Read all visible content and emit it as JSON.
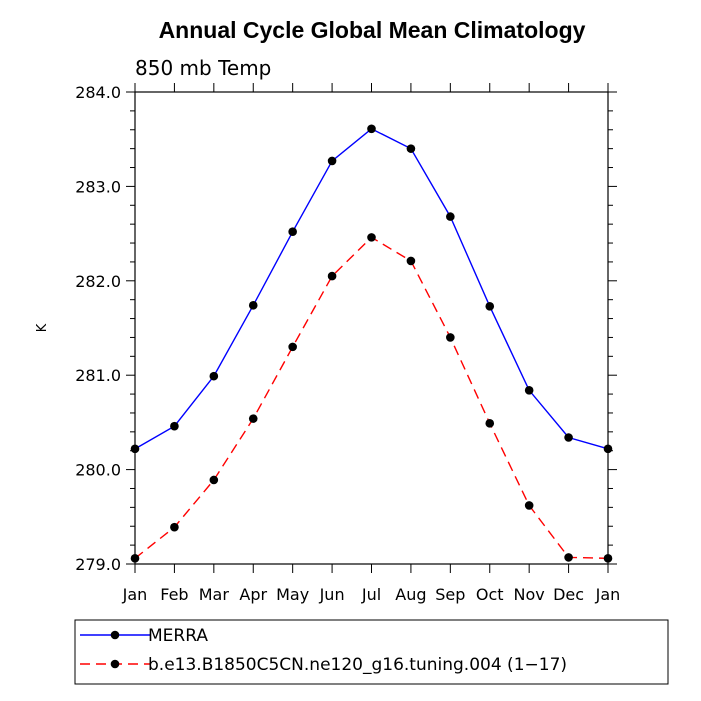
{
  "chart_data": {
    "type": "line",
    "title": "Annual Cycle Global Mean Climatology",
    "subtitle": "850 mb Temp",
    "xlabel": "",
    "ylabel": "K",
    "categories": [
      "Jan",
      "Feb",
      "Mar",
      "Apr",
      "May",
      "Jun",
      "Jul",
      "Aug",
      "Sep",
      "Oct",
      "Nov",
      "Dec",
      "Jan"
    ],
    "ylim": [
      279.0,
      284.0
    ],
    "yticks": [
      "279.0",
      "280.0",
      "281.0",
      "282.0",
      "283.0",
      "284.0"
    ],
    "grid": false,
    "legend_position": "bottom",
    "series": [
      {
        "name": "MERRA",
        "color": "#0000ff",
        "style": "solid",
        "marker": "circle",
        "values": [
          280.22,
          280.46,
          280.99,
          281.74,
          282.52,
          283.27,
          283.61,
          283.4,
          282.68,
          281.73,
          280.84,
          280.34,
          280.22
        ]
      },
      {
        "name": "b.e13.B1850C5CN.ne120_g16.tuning.004 (1−17)",
        "color": "#ff0000",
        "style": "dashed",
        "marker": "circle",
        "values": [
          279.06,
          279.39,
          279.89,
          280.54,
          281.3,
          282.05,
          282.46,
          282.21,
          281.4,
          280.49,
          279.62,
          279.07,
          279.06
        ]
      }
    ]
  }
}
